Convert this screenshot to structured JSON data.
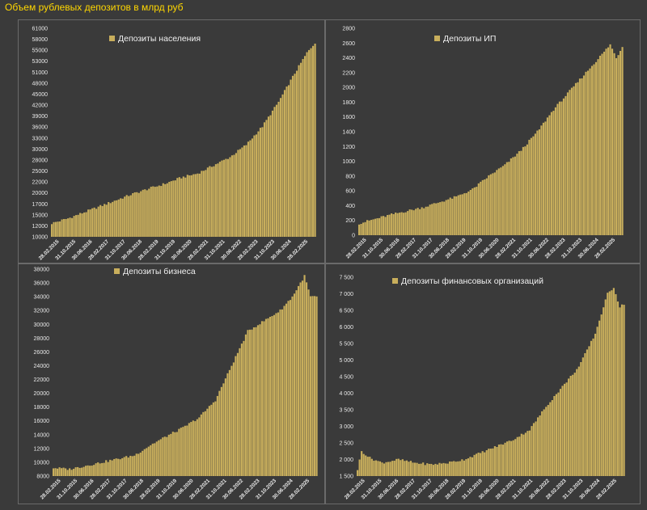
{
  "page_title": "Объем рублевых депозитов в млрд руб",
  "colors": {
    "bar": "#c8ae5c",
    "background": "#3a3a3a",
    "frame": "#6a6a6a",
    "title": "#ffd700"
  },
  "chart_data": [
    {
      "type": "bar",
      "legend": "Депозиты населения",
      "legend_position": "top-left",
      "ylim": [
        10000,
        61000
      ],
      "yticks": [
        "10000",
        "12000",
        "15000",
        "17000",
        "20000",
        "22000",
        "25000",
        "28000",
        "30000",
        "33000",
        "36000",
        "39000",
        "42000",
        "45000",
        "48000",
        "51000",
        "53000",
        "55000",
        "58000",
        "61000"
      ],
      "xticks": [
        "28.02.2015",
        "31.10.2015",
        "30.06.2016",
        "28.02.2017",
        "31.10.2017",
        "30.06.2018",
        "28.02.2019",
        "31.10.2019",
        "30.06.2020",
        "28.02.2021",
        "31.10.2021",
        "30.06.2022",
        "28.02.2023",
        "31.10.2023",
        "30.06.2024",
        "28.02.2025"
      ],
      "keypoints": [
        [
          0,
          13300
        ],
        [
          8,
          14500
        ],
        [
          16,
          16000
        ],
        [
          24,
          17500
        ],
        [
          32,
          19000
        ],
        [
          40,
          20500
        ],
        [
          48,
          21800
        ],
        [
          56,
          23000
        ],
        [
          64,
          24500
        ],
        [
          72,
          25500
        ],
        [
          80,
          27500
        ],
        [
          88,
          29500
        ],
        [
          96,
          32500
        ],
        [
          104,
          37000
        ],
        [
          112,
          43000
        ],
        [
          120,
          50000
        ],
        [
          126,
          55000
        ],
        [
          130,
          57500
        ]
      ]
    },
    {
      "type": "bar",
      "legend": "Депозиты ИП",
      "legend_position": "top-center",
      "ylim": [
        0,
        2800
      ],
      "yticks": [
        "0",
        "200",
        "400",
        "600",
        "800",
        "1000",
        "1200",
        "1400",
        "1600",
        "1800",
        "2000",
        "2200",
        "2400",
        "2600",
        "2800"
      ],
      "xticks": [
        "28.02.2015",
        "31.10.2015",
        "30.06.2016",
        "28.02.2017",
        "31.10.2017",
        "30.06.2018",
        "28.02.2019",
        "31.10.2019",
        "30.06.2020",
        "28.02.2021",
        "31.10.2021",
        "30.06.2022",
        "28.02.2023",
        "31.10.2023",
        "30.06.2024",
        "28.02.2025"
      ],
      "keypoints": [
        [
          0,
          160
        ],
        [
          8,
          220
        ],
        [
          16,
          280
        ],
        [
          24,
          330
        ],
        [
          32,
          380
        ],
        [
          40,
          450
        ],
        [
          48,
          520
        ],
        [
          56,
          620
        ],
        [
          64,
          800
        ],
        [
          72,
          950
        ],
        [
          80,
          1150
        ],
        [
          88,
          1400
        ],
        [
          96,
          1700
        ],
        [
          104,
          1950
        ],
        [
          112,
          2200
        ],
        [
          120,
          2450
        ],
        [
          124,
          2580
        ],
        [
          127,
          2400
        ],
        [
          130,
          2550
        ]
      ]
    },
    {
      "type": "bar",
      "legend": "Депозиты бизнеса",
      "legend_position": "top-center",
      "ylim": [
        8000,
        38000
      ],
      "yticks": [
        "8000",
        "10000",
        "12000",
        "14000",
        "16000",
        "18000",
        "20000",
        "22000",
        "24000",
        "26000",
        "28000",
        "30000",
        "32000",
        "34000",
        "36000",
        "38000"
      ],
      "xticks": [
        "28.02.2015",
        "31.10.2015",
        "30.06.2016",
        "28.02.2017",
        "31.10.2017",
        "30.06.2018",
        "28.02.2019",
        "31.10.2019",
        "30.06.2020",
        "28.02.2021",
        "31.10.2021",
        "30.06.2022",
        "28.02.2023",
        "31.10.2023",
        "30.06.2024",
        "28.02.2025"
      ],
      "keypoints": [
        [
          0,
          9200
        ],
        [
          8,
          9000
        ],
        [
          16,
          9500
        ],
        [
          24,
          10000
        ],
        [
          32,
          10500
        ],
        [
          40,
          11000
        ],
        [
          48,
          12500
        ],
        [
          56,
          13800
        ],
        [
          64,
          15000
        ],
        [
          72,
          16500
        ],
        [
          80,
          19000
        ],
        [
          88,
          24000
        ],
        [
          96,
          29000
        ],
        [
          104,
          30500
        ],
        [
          112,
          32000
        ],
        [
          118,
          34000
        ],
        [
          124,
          37000
        ],
        [
          127,
          34000
        ],
        [
          130,
          34000
        ]
      ]
    },
    {
      "type": "bar",
      "legend": "Депозиты финансовых организаций",
      "legend_position": "top-center",
      "ylim": [
        1500,
        7500
      ],
      "yticks": [
        "1 500",
        "2 000",
        "2 500",
        "3 000",
        "3 500",
        "4 000",
        "4 500",
        "5 000",
        "5 500",
        "6 000",
        "6 500",
        "7 000",
        "7 500"
      ],
      "xticks": [
        "28.02.2015",
        "31.10.2015",
        "30.06.2016",
        "28.02.2017",
        "31.10.2017",
        "30.06.2018",
        "28.02.2019",
        "31.10.2019",
        "30.06.2020",
        "28.02.2021",
        "31.10.2021",
        "30.06.2022",
        "28.02.2023",
        "31.10.2023",
        "30.06.2024",
        "28.02.2025"
      ],
      "keypoints": [
        [
          0,
          1700
        ],
        [
          2,
          2250
        ],
        [
          6,
          2050
        ],
        [
          12,
          1900
        ],
        [
          20,
          2000
        ],
        [
          28,
          1900
        ],
        [
          36,
          1850
        ],
        [
          44,
          1900
        ],
        [
          52,
          2000
        ],
        [
          60,
          2200
        ],
        [
          68,
          2400
        ],
        [
          76,
          2600
        ],
        [
          84,
          2900
        ],
        [
          92,
          3600
        ],
        [
          100,
          4200
        ],
        [
          108,
          4800
        ],
        [
          116,
          5800
        ],
        [
          122,
          7000
        ],
        [
          125,
          7200
        ],
        [
          128,
          6600
        ],
        [
          130,
          6700
        ]
      ]
    }
  ]
}
